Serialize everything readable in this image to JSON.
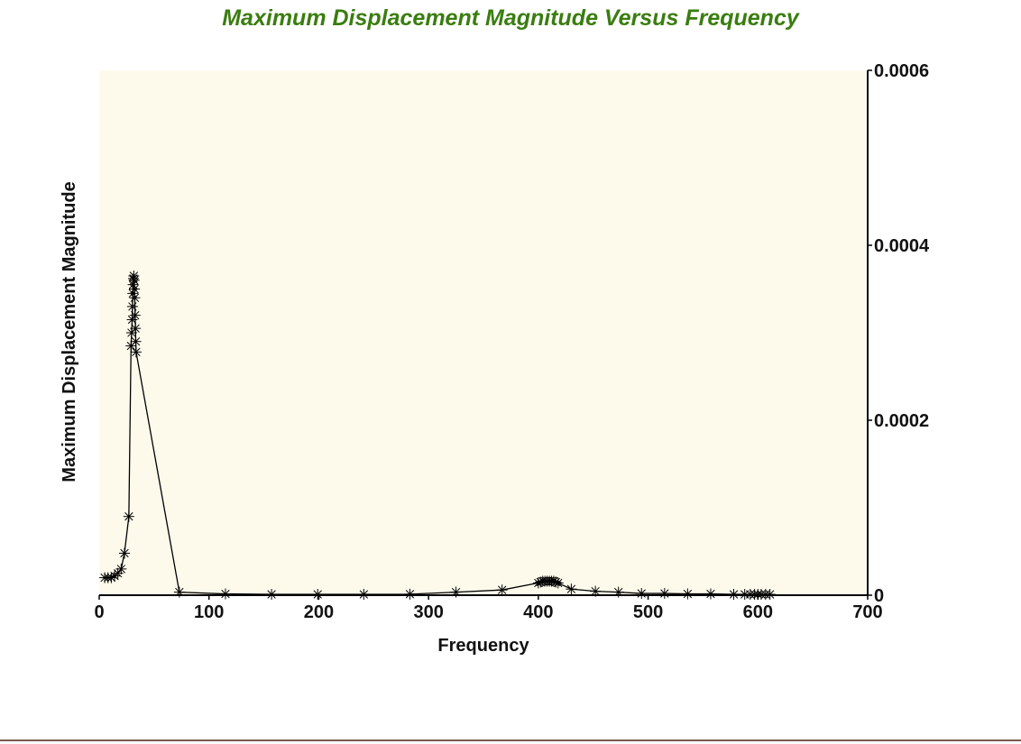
{
  "colors": {
    "title": "#3a7d10",
    "plot_background": "#fdfaec",
    "line": "#000000"
  },
  "chart_data": {
    "type": "line",
    "title": "Maximum Displacement Magnitude Versus Frequency",
    "xlabel": "Frequency",
    "ylabel": "Maximum Displacement Magnitude",
    "xlim": [
      0,
      700
    ],
    "ylim": [
      0,
      0.0006
    ],
    "x_ticks": [
      "0",
      "100",
      "200",
      "300",
      "400",
      "500",
      "600",
      "700"
    ],
    "y_ticks": [
      "0",
      "0.0002",
      "0.0004",
      "0.0006"
    ],
    "y_axis_side": "right",
    "marker": "asterisk",
    "grid": false,
    "series": [
      {
        "name": "",
        "points": [
          [
            5,
            2e-05
          ],
          [
            8,
            2e-05
          ],
          [
            11,
            2e-05
          ],
          [
            14,
            2.2e-05
          ],
          [
            17,
            2.5e-05
          ],
          [
            20,
            3e-05
          ],
          [
            23,
            4.8e-05
          ],
          [
            27,
            9e-05
          ],
          [
            29,
            0.000285
          ],
          [
            29.5,
            0.0003
          ],
          [
            30,
            0.000315
          ],
          [
            30.3,
            0.00033
          ],
          [
            30.6,
            0.000345
          ],
          [
            30.9,
            0.000355
          ],
          [
            31.2,
            0.000362
          ],
          [
            31.5,
            0.000365
          ],
          [
            31.8,
            0.00036
          ],
          [
            32.1,
            0.00035
          ],
          [
            32.4,
            0.00034
          ],
          [
            32.7,
            0.00032
          ],
          [
            33,
            0.000305
          ],
          [
            33.3,
            0.00029
          ],
          [
            33.6,
            0.000278
          ],
          [
            73,
            3.5e-06
          ],
          [
            115,
            1.5e-06
          ],
          [
            157,
            1e-06
          ],
          [
            199,
            1e-06
          ],
          [
            241,
            1e-06
          ],
          [
            283,
            1.2e-06
          ],
          [
            325,
            3.5e-06
          ],
          [
            367,
            6e-06
          ],
          [
            400,
            1.4e-05
          ],
          [
            402,
            1.5e-05
          ],
          [
            404,
            1.6e-05
          ],
          [
            406,
            1.6e-05
          ],
          [
            408,
            1.6e-05
          ],
          [
            410,
            1.6e-05
          ],
          [
            412,
            1.6e-05
          ],
          [
            414,
            1.6e-05
          ],
          [
            416,
            1.5e-05
          ],
          [
            418,
            1.4e-05
          ],
          [
            430,
            7e-06
          ],
          [
            452,
            4.5e-06
          ],
          [
            473,
            3.5e-06
          ],
          [
            494,
            2e-06
          ],
          [
            515,
            2e-06
          ],
          [
            536,
            1.5e-06
          ],
          [
            557,
            1.5e-06
          ],
          [
            578,
            1e-06
          ],
          [
            588,
            1e-06
          ],
          [
            593,
            1e-06
          ],
          [
            597,
            1e-06
          ],
          [
            600,
            1e-06
          ],
          [
            603,
            1e-06
          ],
          [
            607,
            1e-06
          ],
          [
            611,
            1e-06
          ]
        ]
      }
    ]
  }
}
